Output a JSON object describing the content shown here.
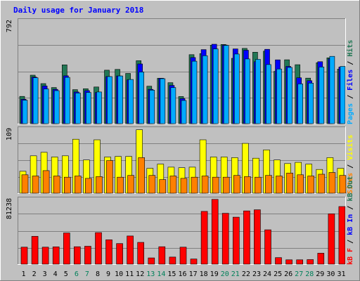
{
  "chart_data": [
    {
      "type": "bar",
      "title": "Daily usage for January 2018",
      "categories": [
        "1",
        "2",
        "3",
        "4",
        "5",
        "6",
        "7",
        "8",
        "9",
        "10",
        "11",
        "12",
        "13",
        "14",
        "15",
        "16",
        "17",
        "18",
        "19",
        "20",
        "21",
        "22",
        "23",
        "24",
        "25",
        "26",
        "27",
        "28",
        "29",
        "30",
        "31"
      ],
      "weekend_days": [
        "6",
        "7",
        "13",
        "14",
        "20",
        "21",
        "27",
        "28"
      ],
      "y_max_label": "792",
      "ylim": [
        0,
        792
      ],
      "grid": true,
      "series": [
        {
          "name": "Hits",
          "color": "#227755",
          "values": [
            209,
            372,
            307,
            277,
            451,
            261,
            268,
            281,
            410,
            416,
            385,
            483,
            287,
            348,
            314,
            208,
            529,
            537,
            602,
            607,
            501,
            577,
            548,
            556,
            401,
            490,
            452,
            349,
            467,
            505,
            418
          ]
        },
        {
          "name": "Files",
          "color": "#0000FF",
          "values": [
            187,
            357,
            289,
            263,
            367,
            243,
            253,
            239,
            361,
            366,
            336,
            458,
            263,
            348,
            293,
            192,
            507,
            568,
            609,
            603,
            573,
            563,
            475,
            570,
            489,
            439,
            352,
            330,
            475,
            497,
            434
          ]
        },
        {
          "name": "Pages",
          "color": "#00AAFF",
          "values": [
            180,
            352,
            266,
            253,
            355,
            235,
            239,
            243,
            361,
            366,
            339,
            396,
            257,
            345,
            277,
            178,
            479,
            521,
            573,
            600,
            534,
            496,
            493,
            453,
            419,
            431,
            305,
            311,
            435,
            516,
            439
          ]
        }
      ],
      "legend": [
        "Pages",
        "Files",
        "Hits"
      ],
      "legend_colors": [
        "#00AAFF",
        "#0000FF",
        "#227755"
      ]
    },
    {
      "type": "bar",
      "categories": [
        "1",
        "2",
        "3",
        "4",
        "5",
        "6",
        "7",
        "8",
        "9",
        "10",
        "11",
        "12",
        "13",
        "14",
        "15",
        "16",
        "17",
        "18",
        "19",
        "20",
        "21",
        "22",
        "23",
        "24",
        "25",
        "26",
        "27",
        "28",
        "29",
        "30",
        "31"
      ],
      "y_max_label": "109",
      "ylim": [
        0,
        109
      ],
      "grid": true,
      "series": [
        {
          "name": "Visits",
          "color": "#FFFF00",
          "values": [
            37,
            63,
            69,
            61,
            63,
            91,
            56,
            90,
            61,
            62,
            62,
            107,
            42,
            49,
            44,
            43,
            44,
            90,
            61,
            61,
            60,
            84,
            59,
            73,
            56,
            50,
            52,
            49,
            40,
            60,
            42
          ]
        },
        {
          "name": "Sites",
          "color": "#FF8000",
          "values": [
            31,
            29,
            38,
            29,
            27,
            29,
            25,
            28,
            55,
            27,
            30,
            60,
            30,
            23,
            29,
            25,
            27,
            29,
            27,
            27,
            30,
            28,
            27,
            30,
            29,
            34,
            31,
            29,
            32,
            35,
            30
          ]
        }
      ],
      "legend": [
        "Sites",
        "Visits"
      ],
      "legend_colors": [
        "#FF8000",
        "#FFFF00"
      ]
    },
    {
      "type": "bar",
      "categories": [
        "1",
        "2",
        "3",
        "4",
        "5",
        "6",
        "7",
        "8",
        "9",
        "10",
        "11",
        "12",
        "13",
        "14",
        "15",
        "16",
        "17",
        "18",
        "19",
        "20",
        "21",
        "22",
        "23",
        "24",
        "25",
        "26",
        "27",
        "28",
        "29",
        "30",
        "31"
      ],
      "y_max_label": "81238",
      "ylim": [
        0,
        81238
      ],
      "grid": true,
      "series": [
        {
          "name": "kB F",
          "color": "#FF0000",
          "values": [
            21100,
            34600,
            21100,
            21500,
            38800,
            21700,
            22300,
            39200,
            30300,
            25600,
            35000,
            27100,
            7800,
            21700,
            8800,
            21100,
            6400,
            65600,
            80500,
            63200,
            58400,
            66200,
            67600,
            42700,
            8100,
            5400,
            5400,
            5700,
            13600,
            62600,
            71600
          ]
        }
      ],
      "legend": [
        "kB F",
        "kB In",
        "kB Out"
      ],
      "legend_colors": [
        "#FF0000",
        "#0000FF",
        "#227755"
      ]
    }
  ],
  "legend_separator": " / "
}
